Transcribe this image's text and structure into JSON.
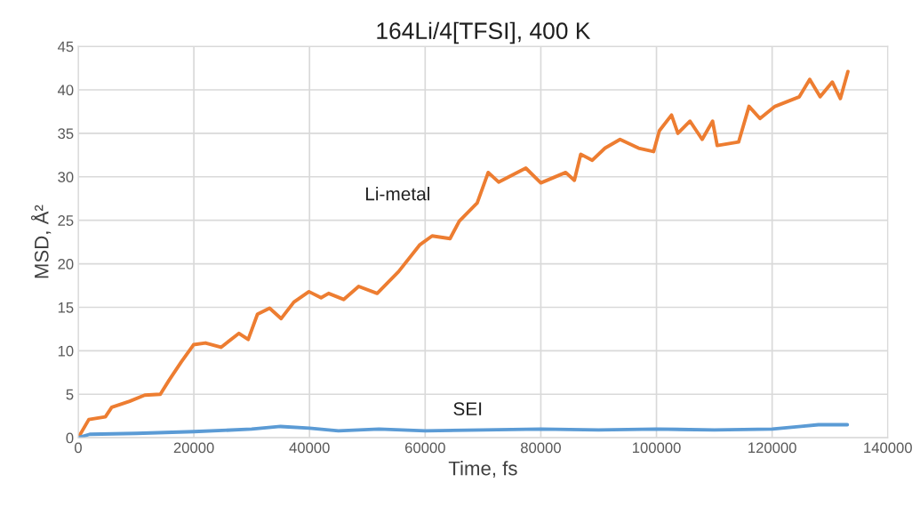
{
  "chart_data": {
    "type": "line",
    "title": "164Li/4[TFSI], 400 K",
    "xlabel": "Time, fs",
    "ylabel": "MSD, Å²",
    "xlim": [
      0,
      140000
    ],
    "xticks": [
      0,
      20000,
      40000,
      60000,
      80000,
      100000,
      120000,
      140000
    ],
    "ylim": [
      0,
      45
    ],
    "yticks": [
      0,
      5,
      10,
      15,
      20,
      25,
      30,
      35,
      40,
      45
    ],
    "grid": true,
    "legend": false,
    "marker": "none",
    "line_style": "solid",
    "series": [
      {
        "name": "Li-metal",
        "color": "#ed7d31",
        "x": [
          0,
          1840,
          4700,
          5800,
          8900,
          11500,
          14200,
          15700,
          17800,
          19950,
          22000,
          24700,
          27800,
          29400,
          31000,
          33100,
          35100,
          37300,
          39900,
          42000,
          43300,
          45900,
          48500,
          51700,
          55400,
          59100,
          61200,
          64300,
          65900,
          69000,
          70900,
          72700,
          77400,
          80000,
          84300,
          85800,
          86900,
          88900,
          91100,
          93700,
          96900,
          99500,
          100500,
          102600,
          103700,
          105800,
          107900,
          109700,
          110500,
          114200,
          116000,
          117900,
          120500,
          124700,
          126500,
          128300,
          130400,
          131800,
          133100
        ],
        "values": [
          0,
          2.1,
          2.4,
          3.5,
          4.2,
          4.9,
          5.0,
          6.6,
          8.7,
          10.7,
          10.9,
          10.4,
          12.0,
          11.3,
          14.2,
          14.9,
          13.7,
          15.6,
          16.8,
          16.1,
          16.6,
          15.9,
          17.4,
          16.6,
          19.1,
          22.2,
          23.2,
          22.9,
          24.9,
          27.0,
          30.5,
          29.4,
          31.0,
          29.3,
          30.5,
          29.6,
          32.6,
          31.9,
          33.3,
          34.3,
          33.3,
          32.9,
          35.3,
          37.1,
          35.0,
          36.4,
          34.3,
          36.4,
          33.6,
          34.0,
          38.1,
          36.7,
          38.1,
          39.2,
          41.2,
          39.2,
          40.9,
          39.0,
          42.1
        ]
      },
      {
        "name": "SEI",
        "color": "#5b9bd5",
        "x": [
          0,
          2000,
          10000,
          20000,
          30000,
          35000,
          40000,
          45000,
          52000,
          60000,
          70000,
          80000,
          90000,
          100000,
          110000,
          120000,
          125000,
          128000,
          133000
        ],
        "values": [
          0,
          0.4,
          0.5,
          0.7,
          1.0,
          1.3,
          1.1,
          0.8,
          1.0,
          0.8,
          0.9,
          1.0,
          0.9,
          1.0,
          0.9,
          1.0,
          1.3,
          1.5,
          1.5
        ]
      }
    ]
  }
}
